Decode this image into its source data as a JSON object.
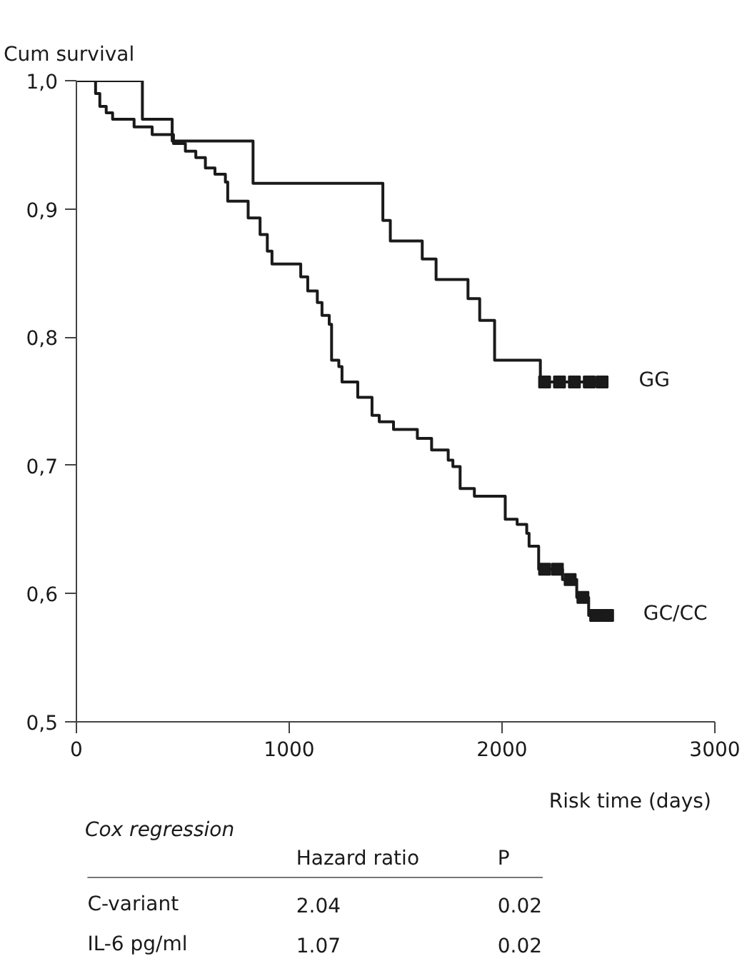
{
  "chart_data": {
    "type": "step",
    "ylabel": "Cum survival",
    "xlabel": "Risk time (days)",
    "xlim": [
      0,
      3000
    ],
    "xticks": [
      0,
      1000,
      2000,
      3000
    ],
    "ylim": [
      0.5,
      1.0
    ],
    "yticks": [
      {
        "value": 0.5,
        "label": "0,5"
      },
      {
        "value": 0.6,
        "label": "0,6"
      },
      {
        "value": 0.7,
        "label": "0,7"
      },
      {
        "value": 0.8,
        "label": "0,8"
      },
      {
        "value": 0.9,
        "label": "0,9"
      },
      {
        "value": 1.0,
        "label": "1,0"
      }
    ],
    "grid": false,
    "line_style": "solid",
    "series": [
      {
        "name": "GG",
        "color": "#1a1a1a",
        "x": [
          0,
          310,
          450,
          830,
          1440,
          1475,
          1625,
          1690,
          1840,
          1895,
          1965,
          2180,
          2475
        ],
        "values": [
          1.0,
          0.97,
          0.953,
          0.92,
          0.891,
          0.875,
          0.861,
          0.845,
          0.83,
          0.813,
          0.782,
          0.765,
          0.765
        ]
      },
      {
        "name": "GC/CC",
        "color": "#1a1a1a",
        "x": [
          0,
          90,
          110,
          140,
          170,
          271,
          356,
          456,
          512,
          561,
          606,
          651,
          700,
          711,
          807,
          863,
          897,
          919,
          1054,
          1087,
          1132,
          1154,
          1188,
          1199,
          1233,
          1248,
          1322,
          1389,
          1423,
          1490,
          1602,
          1669,
          1747,
          1769,
          1803,
          1870,
          2015,
          2071,
          2116,
          2127,
          2172,
          2284,
          2351,
          2407,
          2496
        ],
        "values": [
          1.0,
          0.99,
          0.98,
          0.975,
          0.97,
          0.964,
          0.958,
          0.951,
          0.945,
          0.94,
          0.932,
          0.927,
          0.921,
          0.906,
          0.893,
          0.88,
          0.867,
          0.857,
          0.847,
          0.836,
          0.827,
          0.817,
          0.81,
          0.782,
          0.777,
          0.765,
          0.753,
          0.739,
          0.734,
          0.728,
          0.721,
          0.712,
          0.704,
          0.699,
          0.682,
          0.676,
          0.658,
          0.654,
          0.647,
          0.637,
          0.619,
          0.611,
          0.597,
          0.583,
          0.583
        ]
      },
      {
        "type": "scatter",
        "marker": "square",
        "color": "#1a1a1a",
        "x": [
          2200,
          2270,
          2340,
          2410,
          2470
        ],
        "values": [
          0.765,
          0.765,
          0.765,
          0.765,
          0.765
        ]
      },
      {
        "type": "scatter",
        "marker": "square",
        "color": "#1a1a1a",
        "x": [
          2200,
          2260,
          2320,
          2380,
          2440,
          2496
        ],
        "values": [
          0.619,
          0.619,
          0.611,
          0.597,
          0.583,
          0.583
        ]
      }
    ],
    "annotations": [
      "Cox regression",
      "Hazard ratio",
      "P",
      "C-variant",
      "2.04",
      "0.02",
      "IL-6 pg/ml",
      "1.07",
      "0.02"
    ]
  }
}
